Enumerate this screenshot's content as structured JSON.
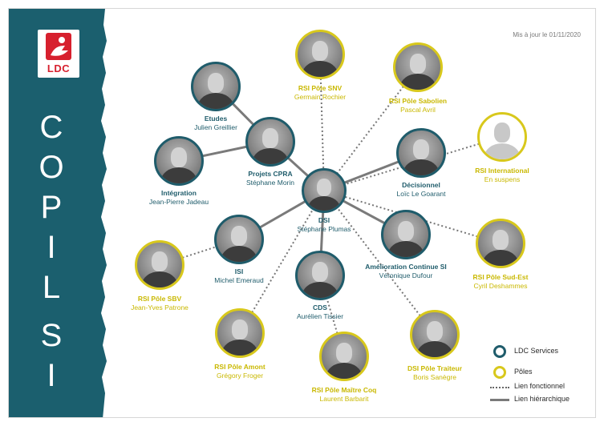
{
  "brand": {
    "logo_text": "LDC",
    "sidebar_title_letters": [
      "C",
      "O",
      "P",
      "I",
      "L",
      "S",
      "I"
    ]
  },
  "update_text": "Mis à jour le 01/11/2020",
  "colors": {
    "sidebar": "#1b5f6e",
    "services_ring": "#1f5c6b",
    "poles_ring": "#d8c81c",
    "hierarchy_line": "#7a7a7a",
    "functional_line": "#777777"
  },
  "nodes": [
    {
      "id": "dsi",
      "type": "services",
      "title": "DSI",
      "name": "Stéphane Plumas"
    },
    {
      "id": "etudes",
      "type": "services",
      "title": "Etudes",
      "name": "Julien Greillier"
    },
    {
      "id": "projets",
      "type": "services",
      "title": "Projets CPRA",
      "name": "Stéphane Morin"
    },
    {
      "id": "integration",
      "type": "services",
      "title": "Intégration",
      "name": "Jean-Pierre Jadeau"
    },
    {
      "id": "decisionnel",
      "type": "services",
      "title": "Décisionnel",
      "name": "Loïc Le Goarant"
    },
    {
      "id": "amelioration",
      "type": "services",
      "title": "Amélioration Continue SI",
      "name": "Véronique Dufour"
    },
    {
      "id": "isi",
      "type": "services",
      "title": "ISI",
      "name": "Michel Emeraud"
    },
    {
      "id": "cds",
      "type": "services",
      "title": "CDS",
      "name": "Aurélien Tissier"
    },
    {
      "id": "snv",
      "type": "poles",
      "title": "RSI Pôle SNV",
      "name": "Germain Rochier"
    },
    {
      "id": "sabolien",
      "type": "poles",
      "title": "RSI Pôle Sabolien",
      "name": "Pascal Avril"
    },
    {
      "id": "international",
      "type": "poles",
      "title": "RSI International",
      "name": "En suspens",
      "placeholder": true
    },
    {
      "id": "sudest",
      "type": "poles",
      "title": "RSI Pôle Sud-Est",
      "name": "Cyril Deshammes"
    },
    {
      "id": "sbv",
      "type": "poles",
      "title": "RSI Pôle SBV",
      "name": "Jean-Yves Patrone"
    },
    {
      "id": "amont",
      "type": "poles",
      "title": "RSI Pôle Amont",
      "name": "Grégory Froger"
    },
    {
      "id": "traiteur",
      "type": "poles",
      "title": "DSI Pôle Traiteur",
      "name": "Boris Sanègre"
    },
    {
      "id": "maitrecoq",
      "type": "poles",
      "title": "RSI Pôle Maître Coq",
      "name": "Laurent Barbarit"
    }
  ],
  "links": [
    {
      "from": "etudes",
      "to": "projets",
      "kind": "hierarchique"
    },
    {
      "from": "projets",
      "to": "dsi",
      "kind": "hierarchique"
    },
    {
      "from": "integration",
      "to": "projets",
      "kind": "hierarchique"
    },
    {
      "from": "decisionnel",
      "to": "dsi",
      "kind": "hierarchique"
    },
    {
      "from": "amelioration",
      "to": "dsi",
      "kind": "hierarchique"
    },
    {
      "from": "isi",
      "to": "dsi",
      "kind": "hierarchique"
    },
    {
      "from": "cds",
      "to": "dsi",
      "kind": "hierarchique"
    },
    {
      "from": "snv",
      "to": "dsi",
      "kind": "fonctionnel"
    },
    {
      "from": "sabolien",
      "to": "dsi",
      "kind": "fonctionnel"
    },
    {
      "from": "international",
      "to": "dsi",
      "kind": "fonctionnel"
    },
    {
      "from": "sudest",
      "to": "dsi",
      "kind": "fonctionnel"
    },
    {
      "from": "sbv",
      "to": "isi",
      "kind": "fonctionnel"
    },
    {
      "from": "amont",
      "to": "dsi",
      "kind": "fonctionnel"
    },
    {
      "from": "traiteur",
      "to": "dsi",
      "kind": "fonctionnel"
    },
    {
      "from": "maitrecoq",
      "to": "cds",
      "kind": "fonctionnel"
    }
  ],
  "legend": {
    "services_label": "LDC Services",
    "poles_label": "Pôles",
    "functional_label": "Lien fonctionnel",
    "hierarchy_label": "Lien hiérarchique"
  }
}
